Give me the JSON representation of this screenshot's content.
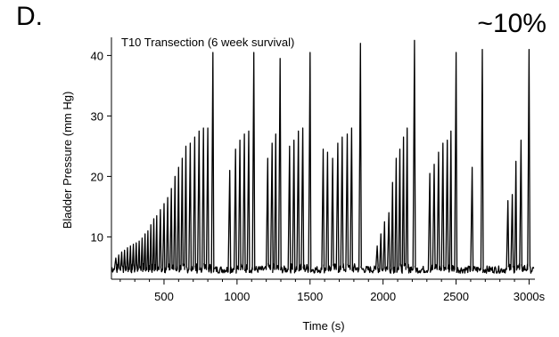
{
  "figure": {
    "panel_label": "D.",
    "corner_note": "~10%"
  },
  "chart_data": {
    "type": "line",
    "title": "T10 Transection (6 week survival)",
    "xlabel": "Time (s)",
    "ylabel": "Bladder Pressure (mm Hg)",
    "xlim": [
      140,
      3040
    ],
    "ylim": [
      3,
      43
    ],
    "x_ticks": [
      500,
      1000,
      1500,
      2000,
      2500,
      3000
    ],
    "x_tick_labels": [
      "500",
      "1000",
      "1500",
      "2000",
      "2500",
      "3000s"
    ],
    "y_ticks": [
      10,
      20,
      30,
      40
    ],
    "y_tick_labels": [
      "10",
      "20",
      "30",
      "40"
    ],
    "grid": false,
    "line_color": "#000000",
    "baseline": 4,
    "series": [
      {
        "contraction_peaks": [
          {
            "time": 170,
            "pressure": 6.5
          },
          {
            "time": 190,
            "pressure": 7
          },
          {
            "time": 210,
            "pressure": 7.5
          },
          {
            "time": 230,
            "pressure": 7.8
          },
          {
            "time": 250,
            "pressure": 8.2
          },
          {
            "time": 270,
            "pressure": 8.5
          },
          {
            "time": 290,
            "pressure": 8.8
          },
          {
            "time": 310,
            "pressure": 9
          },
          {
            "time": 330,
            "pressure": 9.3
          },
          {
            "time": 350,
            "pressure": 9.8
          },
          {
            "time": 370,
            "pressure": 10.5
          },
          {
            "time": 390,
            "pressure": 11
          },
          {
            "time": 410,
            "pressure": 12
          },
          {
            "time": 430,
            "pressure": 13
          },
          {
            "time": 450,
            "pressure": 13.5
          },
          {
            "time": 475,
            "pressure": 14.5
          },
          {
            "time": 500,
            "pressure": 15.5
          },
          {
            "time": 525,
            "pressure": 16.5
          },
          {
            "time": 550,
            "pressure": 18
          },
          {
            "time": 575,
            "pressure": 20
          },
          {
            "time": 600,
            "pressure": 21.5
          },
          {
            "time": 625,
            "pressure": 23
          },
          {
            "time": 650,
            "pressure": 25
          },
          {
            "time": 680,
            "pressure": 25.5
          },
          {
            "time": 710,
            "pressure": 26.5
          },
          {
            "time": 740,
            "pressure": 27.5
          },
          {
            "time": 770,
            "pressure": 28
          },
          {
            "time": 800,
            "pressure": 28
          },
          {
            "time": 835,
            "pressure": 40.5
          },
          {
            "time": 950,
            "pressure": 21
          },
          {
            "time": 990,
            "pressure": 24.5
          },
          {
            "time": 1020,
            "pressure": 26
          },
          {
            "time": 1050,
            "pressure": 27
          },
          {
            "time": 1080,
            "pressure": 27.5
          },
          {
            "time": 1115,
            "pressure": 40.5
          },
          {
            "time": 1210,
            "pressure": 23
          },
          {
            "time": 1240,
            "pressure": 25.5
          },
          {
            "time": 1265,
            "pressure": 27
          },
          {
            "time": 1295,
            "pressure": 39.5
          },
          {
            "time": 1360,
            "pressure": 25
          },
          {
            "time": 1390,
            "pressure": 26
          },
          {
            "time": 1420,
            "pressure": 27.5
          },
          {
            "time": 1450,
            "pressure": 28
          },
          {
            "time": 1500,
            "pressure": 40.5
          },
          {
            "time": 1590,
            "pressure": 24.5
          },
          {
            "time": 1620,
            "pressure": 24
          },
          {
            "time": 1655,
            "pressure": 23
          },
          {
            "time": 1690,
            "pressure": 25.5
          },
          {
            "time": 1720,
            "pressure": 26.5
          },
          {
            "time": 1755,
            "pressure": 27
          },
          {
            "time": 1785,
            "pressure": 28
          },
          {
            "time": 1845,
            "pressure": 42
          },
          {
            "time": 1960,
            "pressure": 8.5
          },
          {
            "time": 1985,
            "pressure": 10.5
          },
          {
            "time": 2010,
            "pressure": 12.5
          },
          {
            "time": 2040,
            "pressure": 14
          },
          {
            "time": 2065,
            "pressure": 19
          },
          {
            "time": 2090,
            "pressure": 23
          },
          {
            "time": 2115,
            "pressure": 24.5
          },
          {
            "time": 2140,
            "pressure": 26.5
          },
          {
            "time": 2165,
            "pressure": 28
          },
          {
            "time": 2215,
            "pressure": 42.5
          },
          {
            "time": 2320,
            "pressure": 20.5
          },
          {
            "time": 2350,
            "pressure": 22
          },
          {
            "time": 2380,
            "pressure": 24
          },
          {
            "time": 2410,
            "pressure": 25.5
          },
          {
            "time": 2440,
            "pressure": 26
          },
          {
            "time": 2465,
            "pressure": 27.5
          },
          {
            "time": 2500,
            "pressure": 40.5
          },
          {
            "time": 2610,
            "pressure": 21.5
          },
          {
            "time": 2680,
            "pressure": 41
          },
          {
            "time": 2855,
            "pressure": 16
          },
          {
            "time": 2885,
            "pressure": 17
          },
          {
            "time": 2910,
            "pressure": 22.5
          },
          {
            "time": 2945,
            "pressure": 26
          },
          {
            "time": 3000,
            "pressure": 41
          }
        ]
      }
    ]
  }
}
